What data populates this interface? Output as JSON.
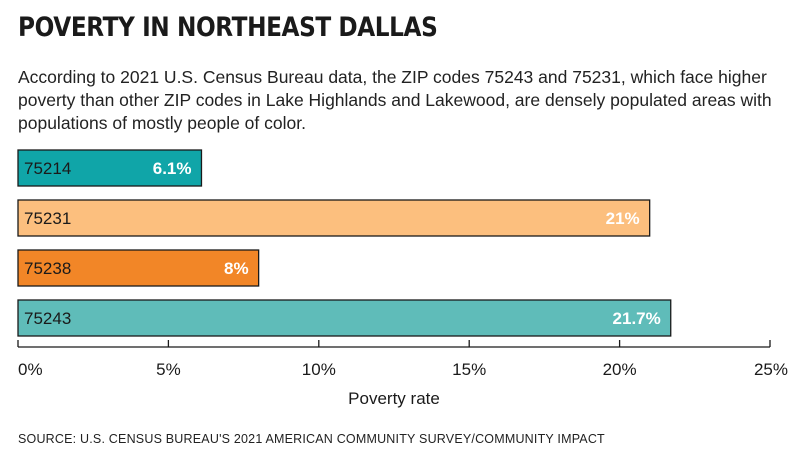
{
  "title": "POVERTY IN NORTHEAST DALLAS",
  "subtitle": "According to 2021 U.S. Census Bureau data, the ZIP codes 75243 and 75231, which face higher poverty than other ZIP codes in Lake Highlands and Lakewood, are densely populated areas with populations of mostly people of color.",
  "source": "SOURCE: U.S. CENSUS BUREAU'S 2021 AMERICAN COMMUNITY SURVEY/COMMUNITY IMPACT",
  "chart_data": {
    "type": "bar",
    "orientation": "horizontal",
    "categories": [
      "75214",
      "75231",
      "75238",
      "75243"
    ],
    "values": [
      6.1,
      21,
      8,
      21.7
    ],
    "data_labels": [
      "6.1%",
      "21%",
      "8%",
      "21.7%"
    ],
    "colors": [
      "#10a5a8",
      "#fcbf7e",
      "#f28627",
      "#5fbcb9"
    ],
    "xlabel": "Poverty rate",
    "ylabel": "",
    "xlim": [
      0,
      25
    ],
    "ticks": [
      0,
      5,
      10,
      15,
      20,
      25
    ],
    "tick_labels": [
      "0%",
      "5%",
      "10%",
      "15%",
      "20%",
      "25%"
    ],
    "grid": false,
    "legend": "none"
  }
}
